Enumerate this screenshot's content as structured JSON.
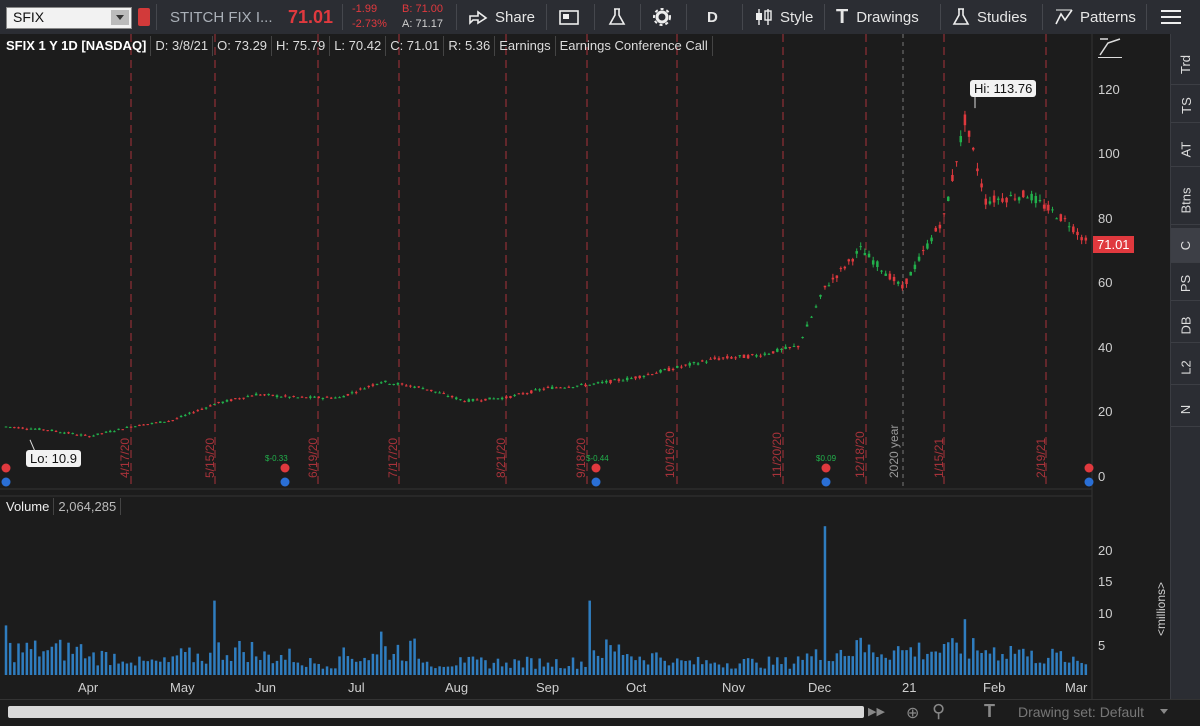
{
  "toolbar": {
    "symbol": "SFIX",
    "company": "STITCH FIX I...",
    "last": "71.01",
    "change": "-1.99",
    "change_pct": "-2.73%",
    "bid": "B: 71.00",
    "ask": "A: 71.17",
    "share": "Share",
    "aggregation": "D",
    "style": "Style",
    "drawings": "Drawings",
    "studies": "Studies",
    "patterns": "Patterns"
  },
  "info_bar": {
    "symbol_desc": "SFIX 1 Y 1D [NASDAQ]",
    "date": "D: 3/8/21",
    "open": "O: 73.29",
    "high": "H: 75.79",
    "low": "L: 70.42",
    "close": "C: 71.01",
    "range": "R: 5.36",
    "earnings": "Earnings",
    "conference": "Earnings Conference Call"
  },
  "right_panel": [
    "Trd",
    "TS",
    "AT",
    "Btns",
    "C",
    "PS",
    "DB",
    "L2",
    "N"
  ],
  "price_axis": [
    "120",
    "100",
    "80",
    "60",
    "40",
    "20",
    "0"
  ],
  "volume_axis": [
    "20",
    "15",
    "10",
    "5"
  ],
  "volume_unit": "<millions>",
  "hi_label": "Hi: 113.76",
  "lo_label": "Lo: 10.9",
  "last_price_label": "71.01",
  "volume_title": "Volume",
  "volume_value": "2,064,285",
  "date_markers": [
    "4/17/20",
    "5/15/20",
    "6/19/20",
    "7/17/20",
    "8/21/20",
    "9/18/20",
    "10/16/20",
    "11/20/20",
    "12/18/20",
    "1/15/21",
    "2/19/21"
  ],
  "year_marker": "2020 year",
  "months": [
    "Apr",
    "May",
    "Jun",
    "Jul",
    "Aug",
    "Sep",
    "Oct",
    "Nov",
    "Dec",
    "21",
    "Feb",
    "Mar"
  ],
  "dividends": [
    "$-0.33",
    "$-0.44",
    "$0.09"
  ],
  "drawing_set": "Drawing set: Default",
  "colors": {
    "up": "#22b14c",
    "down": "#e0393e",
    "volume": "#2f7dbf",
    "marker": "#a8323a",
    "accent": "#e0393e"
  },
  "chart_data": {
    "type": "candlestick",
    "symbol": "SFIX",
    "period": "1 Y",
    "interval": "1D",
    "ylim": [
      0,
      125
    ],
    "x": [
      "2020-03-09",
      "2020-03-23",
      "2020-04-06",
      "2020-04-20",
      "2020-05-04",
      "2020-05-18",
      "2020-06-01",
      "2020-06-15",
      "2020-06-29",
      "2020-07-13",
      "2020-07-27",
      "2020-08-10",
      "2020-08-24",
      "2020-09-07",
      "2020-09-21",
      "2020-10-05",
      "2020-10-19",
      "2020-11-02",
      "2020-11-16",
      "2020-11-30",
      "2020-12-09",
      "2020-12-21",
      "2021-01-04",
      "2021-01-18",
      "2021-01-25",
      "2021-02-01",
      "2021-02-15",
      "2021-03-01",
      "2021-03-08"
    ],
    "close": [
      15,
      14,
      12,
      15,
      17,
      22,
      25,
      24,
      24,
      29,
      27,
      23,
      24,
      27,
      28,
      30,
      33,
      36,
      37,
      40,
      58,
      70,
      58,
      80,
      110,
      85,
      87,
      78,
      71.01
    ],
    "high_point": 113.76,
    "low_point": 10.9,
    "volume_millions": [
      8,
      4,
      3,
      2,
      3,
      12,
      3,
      2,
      3,
      7,
      2,
      2,
      2,
      2,
      12,
      3,
      2,
      2,
      2,
      3,
      24,
      6,
      4,
      5,
      9,
      4,
      3,
      2,
      3
    ]
  }
}
